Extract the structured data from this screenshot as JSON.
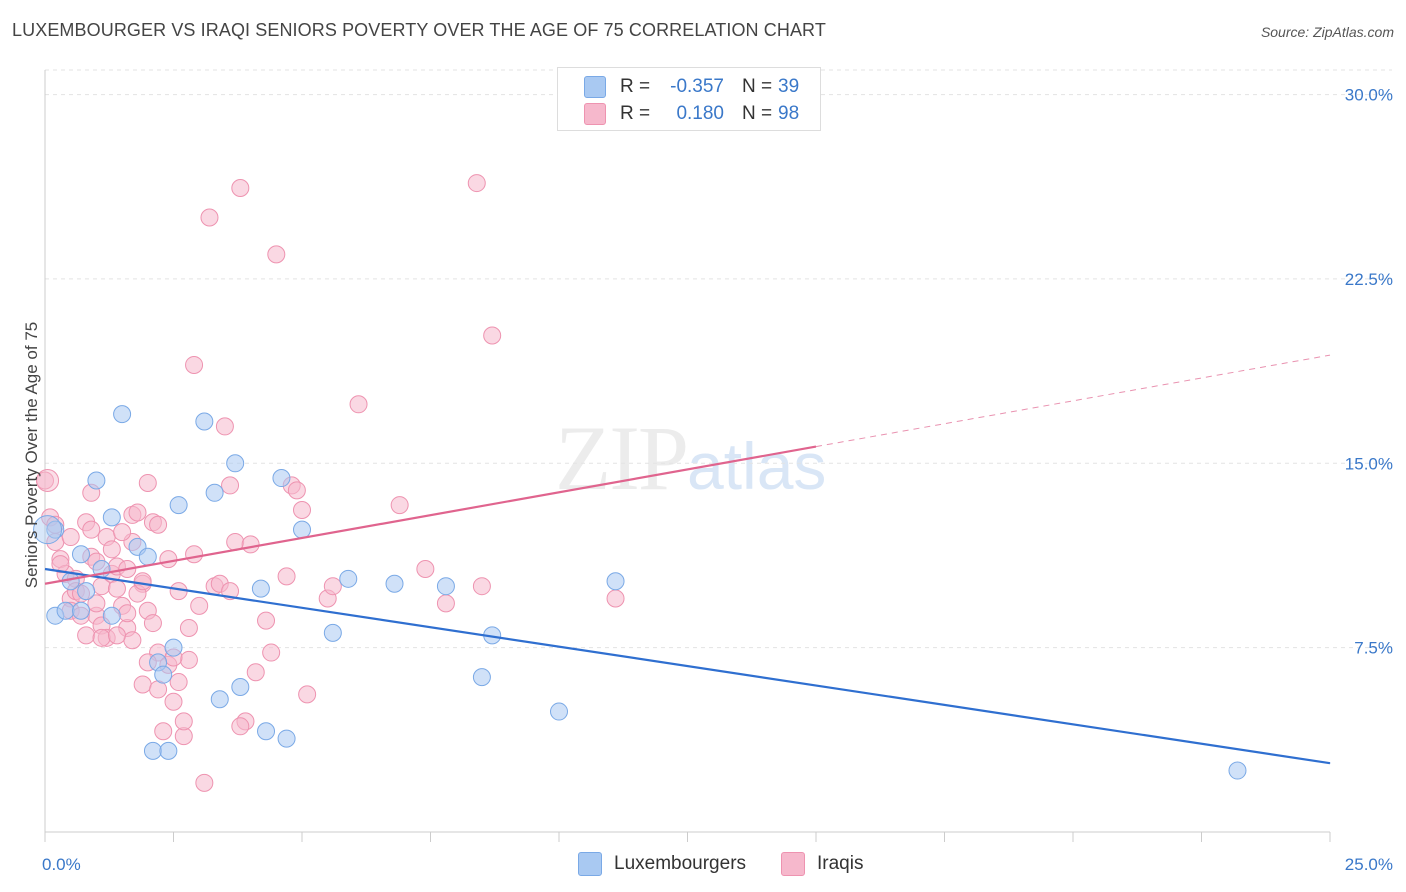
{
  "header": {
    "title": "LUXEMBOURGER VS IRAQI SENIORS POVERTY OVER THE AGE OF 75 CORRELATION CHART",
    "source": "Source: ZipAtlas.com"
  },
  "watermark": {
    "zip": "ZIP",
    "atlas": "atlas"
  },
  "legend_top": {
    "rows": [
      {
        "r_label": "R =",
        "r_value": "-0.357",
        "n_label": "N =",
        "n_value": "39",
        "color": "#a9c9f2"
      },
      {
        "r_label": "R =",
        "r_value": "0.180",
        "n_label": "N =",
        "n_value": "98",
        "color": "#f6b8cc"
      }
    ]
  },
  "legend_bottom": [
    {
      "label": "Luxembourgers",
      "color": "#a9c9f2"
    },
    {
      "label": "Iraqis",
      "color": "#f6b8cc"
    }
  ],
  "colors": {
    "blue_fill": "#a9c9f2",
    "blue_stroke": "#7aa9e6",
    "blue_line": "#2f6fd0",
    "pink_fill": "#f6b8cc",
    "pink_stroke": "#ee93b0",
    "pink_line": "#e0648e",
    "tick_label": "#3a78c9",
    "grid": "#e3e3e3"
  },
  "chart_data": {
    "type": "scatter",
    "title": "LUXEMBOURGER VS IRAQI SENIORS POVERTY OVER THE AGE OF 75 CORRELATION CHART",
    "xlabel": "",
    "ylabel": "Seniors Poverty Over the Age of 75",
    "xlim": [
      0,
      25
    ],
    "ylim": [
      0,
      31
    ],
    "x_tick_labels": [
      "0.0%",
      "25.0%"
    ],
    "y_ticks": [
      7.5,
      15.0,
      22.5,
      30.0
    ],
    "y_tick_labels": [
      "7.5%",
      "15.0%",
      "22.5%",
      "30.0%"
    ],
    "grid": true,
    "legend_position": "top-center",
    "series": [
      {
        "name": "Luxembourgers",
        "R": -0.357,
        "N": 39,
        "trend": {
          "x": [
            0,
            25
          ],
          "y": [
            10.7,
            2.8
          ],
          "solid_to_x": 25
        },
        "points": [
          [
            0.2,
            12.3
          ],
          [
            0.2,
            8.8
          ],
          [
            0.4,
            9.0
          ],
          [
            0.5,
            10.2
          ],
          [
            0.7,
            9.0
          ],
          [
            0.7,
            11.3
          ],
          [
            0.8,
            9.8
          ],
          [
            1.0,
            14.3
          ],
          [
            1.1,
            10.7
          ],
          [
            1.3,
            12.8
          ],
          [
            1.3,
            8.8
          ],
          [
            1.5,
            17.0
          ],
          [
            1.8,
            11.6
          ],
          [
            2.0,
            11.2
          ],
          [
            2.1,
            3.3
          ],
          [
            2.2,
            6.9
          ],
          [
            2.3,
            6.4
          ],
          [
            2.4,
            3.3
          ],
          [
            2.5,
            7.5
          ],
          [
            2.6,
            13.3
          ],
          [
            3.1,
            16.7
          ],
          [
            3.3,
            13.8
          ],
          [
            3.4,
            5.4
          ],
          [
            3.7,
            15.0
          ],
          [
            3.8,
            5.9
          ],
          [
            4.2,
            9.9
          ],
          [
            4.3,
            4.1
          ],
          [
            4.6,
            14.4
          ],
          [
            4.7,
            3.8
          ],
          [
            5.0,
            12.3
          ],
          [
            5.6,
            8.1
          ],
          [
            5.9,
            10.3
          ],
          [
            6.8,
            10.1
          ],
          [
            7.8,
            10.0
          ],
          [
            8.5,
            6.3
          ],
          [
            8.7,
            8.0
          ],
          [
            10.0,
            4.9
          ],
          [
            11.1,
            10.2
          ],
          [
            23.2,
            2.5
          ]
        ]
      },
      {
        "name": "Iraqis",
        "R": 0.18,
        "N": 98,
        "trend": {
          "x": [
            0,
            25
          ],
          "y": [
            10.1,
            19.4
          ],
          "solid_to_x": 15
        },
        "points": [
          [
            0.0,
            14.3
          ],
          [
            0.1,
            12.8
          ],
          [
            0.2,
            11.8
          ],
          [
            0.2,
            12.5
          ],
          [
            0.3,
            11.1
          ],
          [
            0.4,
            10.5
          ],
          [
            0.5,
            9.5
          ],
          [
            0.5,
            9.0
          ],
          [
            0.6,
            10.3
          ],
          [
            0.7,
            8.8
          ],
          [
            0.8,
            8.0
          ],
          [
            0.8,
            12.6
          ],
          [
            0.9,
            11.2
          ],
          [
            0.9,
            13.8
          ],
          [
            1.0,
            8.8
          ],
          [
            1.0,
            9.3
          ],
          [
            1.1,
            8.4
          ],
          [
            1.1,
            10.0
          ],
          [
            1.2,
            12.0
          ],
          [
            1.3,
            10.5
          ],
          [
            1.4,
            10.8
          ],
          [
            1.5,
            9.2
          ],
          [
            1.6,
            8.3
          ],
          [
            1.7,
            12.9
          ],
          [
            1.7,
            11.8
          ],
          [
            1.9,
            6.0
          ],
          [
            1.9,
            10.1
          ],
          [
            2.0,
            9.0
          ],
          [
            2.1,
            12.6
          ],
          [
            2.2,
            7.3
          ],
          [
            2.3,
            4.1
          ],
          [
            2.4,
            6.8
          ],
          [
            2.5,
            5.3
          ],
          [
            2.6,
            9.8
          ],
          [
            2.7,
            3.9
          ],
          [
            2.8,
            7.0
          ],
          [
            2.9,
            19.0
          ],
          [
            3.1,
            2.0
          ],
          [
            3.3,
            10.0
          ],
          [
            3.5,
            16.5
          ],
          [
            3.6,
            14.1
          ],
          [
            3.7,
            11.8
          ],
          [
            3.8,
            26.2
          ],
          [
            3.9,
            4.5
          ],
          [
            4.0,
            11.7
          ],
          [
            4.3,
            8.6
          ],
          [
            4.4,
            7.3
          ],
          [
            4.5,
            23.5
          ],
          [
            4.7,
            10.4
          ],
          [
            4.8,
            14.1
          ],
          [
            5.0,
            13.1
          ],
          [
            5.1,
            5.6
          ],
          [
            5.5,
            9.5
          ],
          [
            5.6,
            10.0
          ],
          [
            6.1,
            17.4
          ],
          [
            6.9,
            13.3
          ],
          [
            7.4,
            10.7
          ],
          [
            7.8,
            9.3
          ],
          [
            8.4,
            26.4
          ],
          [
            8.5,
            10.0
          ],
          [
            8.7,
            20.2
          ],
          [
            11.1,
            9.5
          ],
          [
            0.6,
            9.8
          ],
          [
            1.0,
            11.0
          ],
          [
            1.4,
            9.9
          ],
          [
            1.6,
            8.9
          ],
          [
            1.8,
            9.7
          ],
          [
            2.0,
            14.2
          ],
          [
            2.2,
            12.5
          ],
          [
            2.4,
            11.1
          ],
          [
            2.6,
            6.1
          ],
          [
            2.8,
            8.3
          ],
          [
            3.2,
            25.0
          ],
          [
            3.4,
            10.1
          ],
          [
            3.0,
            9.2
          ],
          [
            1.2,
            7.9
          ],
          [
            1.5,
            12.2
          ],
          [
            2.1,
            8.5
          ],
          [
            2.5,
            7.1
          ],
          [
            1.8,
            13.0
          ],
          [
            0.3,
            10.9
          ],
          [
            0.9,
            12.3
          ],
          [
            1.3,
            11.5
          ],
          [
            1.6,
            10.7
          ],
          [
            2.2,
            5.8
          ],
          [
            2.7,
            4.5
          ],
          [
            4.1,
            6.5
          ],
          [
            4.9,
            13.9
          ],
          [
            3.6,
            9.8
          ],
          [
            2.0,
            6.9
          ],
          [
            1.1,
            7.9
          ],
          [
            0.7,
            9.7
          ],
          [
            1.9,
            10.2
          ],
          [
            2.9,
            11.3
          ],
          [
            3.8,
            4.3
          ],
          [
            1.7,
            7.8
          ],
          [
            0.5,
            12.0
          ],
          [
            1.4,
            8.0
          ]
        ]
      }
    ]
  },
  "y_axis_label": "Seniors Poverty Over the Age of 75"
}
